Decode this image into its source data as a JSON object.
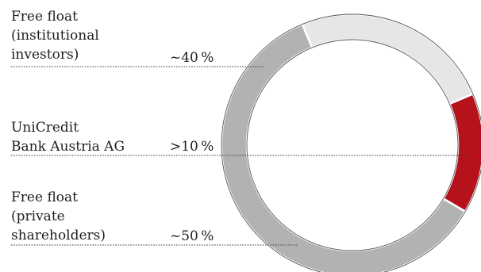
{
  "chart_data": {
    "type": "pie",
    "variant": "donut",
    "title": "",
    "legend_placement": "left",
    "slices": [
      {
        "label_lines": [
          "Free float",
          "(institutional",
          "investors)"
        ],
        "value_label": "~40 %",
        "value": 40,
        "color": "#e6e6e6"
      },
      {
        "label_lines": [
          "UniCredit",
          "Bank Austria AG"
        ],
        "value_label": ">10 %",
        "value": 10,
        "color": "#b5121b"
      },
      {
        "label_lines": [
          "Free float",
          "(private",
          "shareholders)"
        ],
        "value_label": "~50 %",
        "value": 50,
        "color": "#b1b3b3"
      }
    ]
  }
}
